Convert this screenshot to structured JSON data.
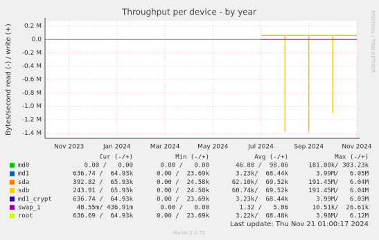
{
  "chart_data": {
    "type": "line",
    "title": "Throughput per device - by year",
    "y_label": "Bytes/second read (-) / write (+)",
    "x": [
      "2024-07",
      "2024-08",
      "2024-08",
      "2024-08",
      "2024-09",
      "2024-09",
      "2024-09",
      "2024-10",
      "2024-10",
      "2024-10",
      "2024-11"
    ],
    "xlim": [
      "2023-10",
      "2024-11"
    ],
    "xticks": [
      {
        "value": "2023-11",
        "label": "Nov 2023"
      },
      {
        "value": "2024-01",
        "label": "Jan 2024"
      },
      {
        "value": "2024-03",
        "label": "Mar 2024"
      },
      {
        "value": "2024-05",
        "label": "May 2024"
      },
      {
        "value": "2024-07",
        "label": "Jul 2024"
      },
      {
        "value": "2024-09",
        "label": "Sep 2024"
      },
      {
        "value": "2024-11",
        "label": "Nov 2024"
      }
    ],
    "ylim": [
      -1480000,
      280000
    ],
    "yticks": [
      {
        "value": 200000,
        "label": "0.2 M"
      },
      {
        "value": 0,
        "label": "0.0"
      },
      {
        "value": -200000,
        "label": "-0.2 M"
      },
      {
        "value": -400000,
        "label": "-0.4 M"
      },
      {
        "value": -600000,
        "label": "-0.6 M"
      },
      {
        "value": -800000,
        "label": "-0.8 M"
      },
      {
        "value": -1000000,
        "label": "-1.0 M"
      },
      {
        "value": -1200000,
        "label": "-1.2 M"
      },
      {
        "value": -1400000,
        "label": "-1.4 M"
      }
    ],
    "grid": true,
    "series": [
      {
        "name": "md0",
        "color": "#00cc00",
        "values": [
          0,
          0,
          0,
          0,
          0,
          0,
          0,
          0,
          0,
          0,
          0
        ]
      },
      {
        "name": "md1",
        "color": "#0066b3",
        "values": [
          60000,
          60000,
          60000,
          60000,
          60000,
          60000,
          60000,
          60000,
          60000,
          60000,
          60000
        ]
      },
      {
        "name": "sda",
        "color": "#ff8000",
        "values": [
          60000,
          60000,
          -1380000,
          60000,
          60000,
          -1380000,
          60000,
          60000,
          -1100000,
          60000,
          60000
        ]
      },
      {
        "name": "sdb",
        "color": "#ffcc00",
        "values": [
          60000,
          60000,
          -1380000,
          60000,
          60000,
          -1380000,
          60000,
          60000,
          -1100000,
          60000,
          60000
        ]
      },
      {
        "name": "md1_crypt",
        "color": "#330099",
        "values": [
          60000,
          60000,
          60000,
          60000,
          60000,
          60000,
          60000,
          60000,
          60000,
          60000,
          60000
        ]
      },
      {
        "name": "swap_1",
        "color": "#990099",
        "values": [
          0,
          0,
          0,
          0,
          0,
          0,
          0,
          0,
          0,
          0,
          0
        ]
      },
      {
        "name": "root",
        "color": "#ccff00",
        "values": [
          60000,
          60000,
          60000,
          60000,
          60000,
          60000,
          60000,
          60000,
          60000,
          60000,
          60000
        ]
      }
    ]
  },
  "legend_table": {
    "headers": [
      "Cur (-/+)",
      "Min (-/+)",
      "Avg (-/+)",
      "Max (-/+)"
    ],
    "rows": [
      [
        "0.00 /   0.00",
        "0.00 /   0.00",
        "46.80 /  98.06",
        "181.00k/ 303.23k"
      ],
      [
        "636.74 /  64.93k",
        "0.00 /  23.69k",
        "3.23k/  68.44k",
        "3.99M/   6.05M"
      ],
      [
        "392.82 /  65.93k",
        "0.00 /  24.58k",
        "62.10k/  69.52k",
        "191.45M/   6.04M"
      ],
      [
        "243.91 /  65.93k",
        "0.00 /  24.58k",
        "60.74k/  69.52k",
        "191.45M/   6.04M"
      ],
      [
        "636.74 /  64.93k",
        "0.00 /  23.69k",
        "3.23k/  68.44k",
        "3.99M/   6.03M"
      ],
      [
        "48.55m/ 436.91m",
        "0.00 /   0.00",
        "1.32 /   5.86",
        "10.51k/  26.61k"
      ],
      [
        "636.69 /  64.93k",
        "0.00 /  23.69k",
        "3.22k/  68.48k",
        "3.98M/   6.12M"
      ]
    ]
  },
  "last_update": "Last update: Thu Nov 21 01:00:17 2024",
  "footer": "Munin 2.0.73",
  "watermark": "RRDTOOL / TOBI OETIKER"
}
